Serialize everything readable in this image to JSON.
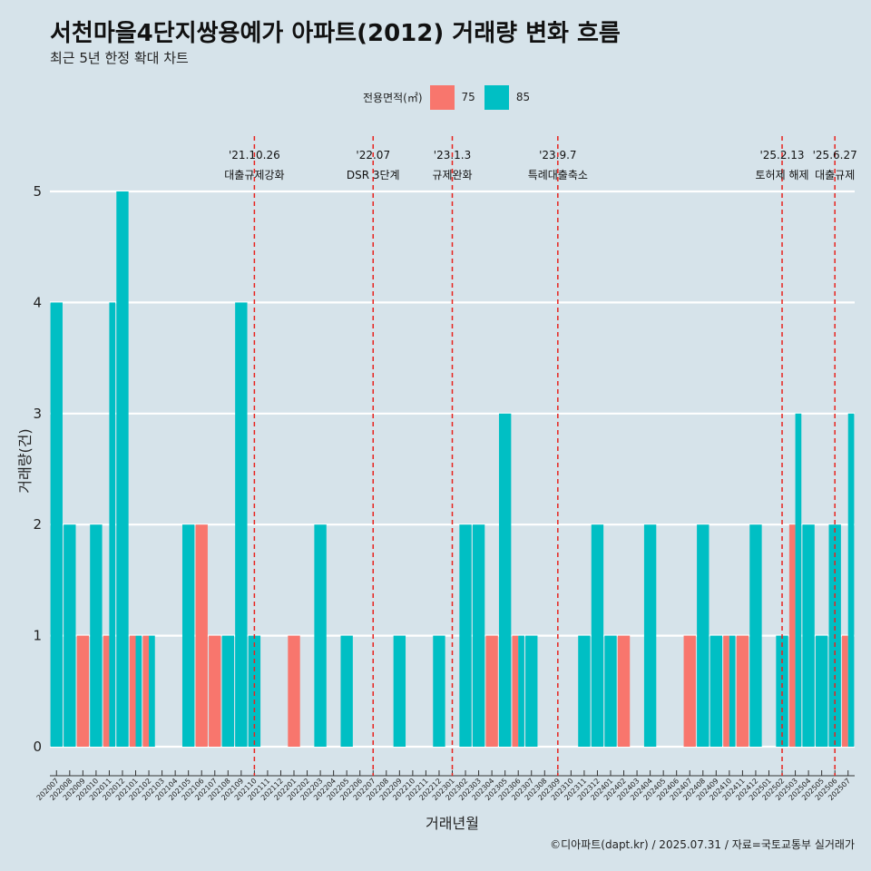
{
  "header": {
    "title": "서천마을4단지쌍용예가 아파트(2012) 거래량 변화 흐름",
    "subtitle": "최근 5년 한정 확대 차트"
  },
  "legend": {
    "title": "전용면적(㎡)",
    "items": [
      {
        "label": "75",
        "color": "#f8766d"
      },
      {
        "label": "85",
        "color": "#00bfc4"
      }
    ]
  },
  "caption": "©디아파트(dapt.kr) / 2025.07.31 / 자료=국토교통부 실거래가",
  "chart_data": {
    "type": "bar",
    "xlabel": "거래년월",
    "ylabel": "거래량(건)",
    "ylim": [
      0,
      5
    ],
    "yticks": [
      "0",
      "1",
      "2",
      "3",
      "4",
      "5"
    ],
    "categories": [
      "202007",
      "202008",
      "202009",
      "202010",
      "202011",
      "202012",
      "202101",
      "202102",
      "202103",
      "202104",
      "202105",
      "202106",
      "202107",
      "202108",
      "202109",
      "202110",
      "202111",
      "202112",
      "202201",
      "202202",
      "202203",
      "202204",
      "202205",
      "202206",
      "202207",
      "202208",
      "202209",
      "202210",
      "202211",
      "202212",
      "202301",
      "202302",
      "202303",
      "202304",
      "202305",
      "202306",
      "202307",
      "202308",
      "202309",
      "202310",
      "202311",
      "202312",
      "202401",
      "202402",
      "202403",
      "202404",
      "202405",
      "202406",
      "202407",
      "202408",
      "202409",
      "202410",
      "202411",
      "202412",
      "202501",
      "202502",
      "202503",
      "202504",
      "202505",
      "202506",
      "202507"
    ],
    "series": [
      {
        "name": "75",
        "color": "#f8766d",
        "values": [
          0,
          0,
          1,
          0,
          1,
          0,
          1,
          1,
          0,
          0,
          0,
          2,
          1,
          0,
          0,
          0,
          0,
          0,
          1,
          0,
          0,
          0,
          0,
          0,
          0,
          0,
          0,
          0,
          0,
          0,
          0,
          0,
          0,
          1,
          0,
          1,
          0,
          0,
          0,
          0,
          0,
          0,
          0,
          1,
          0,
          0,
          0,
          0,
          1,
          0,
          0,
          1,
          1,
          0,
          0,
          0,
          2,
          0,
          0,
          0,
          1
        ]
      },
      {
        "name": "85",
        "color": "#00bfc4",
        "values": [
          4,
          2,
          0,
          2,
          4,
          5,
          1,
          1,
          0,
          0,
          2,
          0,
          0,
          1,
          4,
          1,
          0,
          0,
          0,
          0,
          2,
          0,
          1,
          0,
          0,
          0,
          1,
          0,
          0,
          1,
          0,
          2,
          2,
          0,
          3,
          1,
          1,
          0,
          0,
          0,
          1,
          2,
          1,
          0,
          0,
          2,
          0,
          0,
          0,
          2,
          1,
          1,
          0,
          2,
          0,
          1,
          3,
          2,
          1,
          2,
          3
        ]
      }
    ],
    "annotations": [
      {
        "date": "'21.10.26",
        "label": "대출규제강화",
        "at": "202110"
      },
      {
        "date": "'22.07",
        "label": "DSR 3단계",
        "at": "202207"
      },
      {
        "date": "'23.1.3",
        "label": "규제완화",
        "at": "202301"
      },
      {
        "date": "'23.9.7",
        "label": "특례대출축소",
        "at": "202309"
      },
      {
        "date": "'25.2.13",
        "label": "토허제 해제",
        "at": "202502"
      },
      {
        "date": "'25.6.27",
        "label": "대출규제",
        "at": "202506"
      }
    ]
  }
}
